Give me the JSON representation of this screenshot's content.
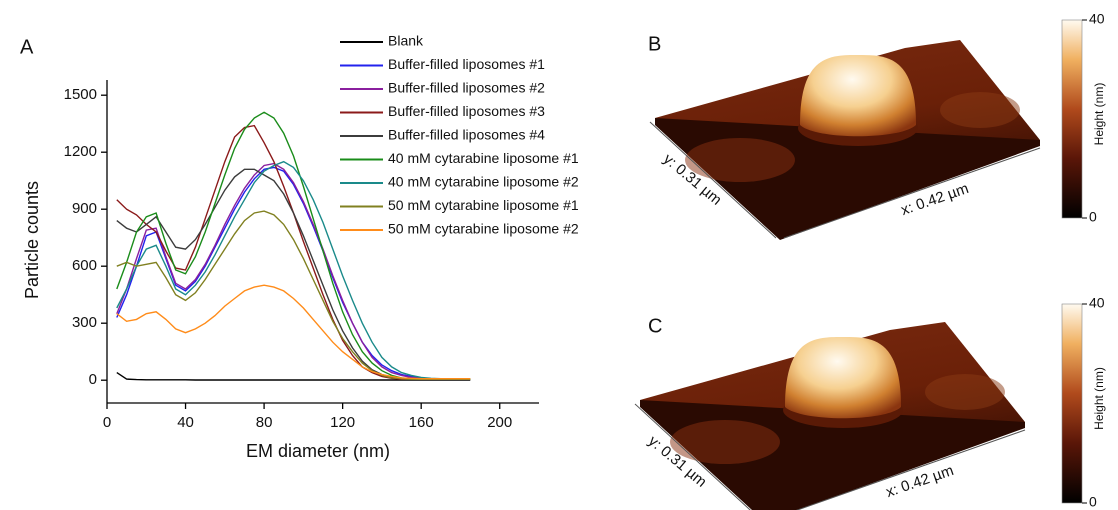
{
  "chart_data": [
    {
      "type": "line",
      "label": "A",
      "xlabel": "EM diameter (nm)",
      "ylabel": "Particle counts",
      "x": [
        5,
        10,
        15,
        20,
        25,
        30,
        35,
        40,
        45,
        50,
        55,
        60,
        65,
        70,
        75,
        80,
        85,
        90,
        95,
        100,
        105,
        110,
        115,
        120,
        125,
        130,
        135,
        140,
        145,
        150,
        155,
        160,
        165,
        170,
        175,
        180,
        185
      ],
      "xlim": [
        0,
        220
      ],
      "xticks": [
        0,
        40,
        80,
        120,
        160,
        200
      ],
      "ylim": [
        -120,
        1580
      ],
      "yticks": [
        0,
        300,
        600,
        900,
        1200,
        1500
      ],
      "series": [
        {
          "name": "Blank",
          "color": "#000000",
          "values": [
            40,
            6,
            3,
            2,
            2,
            2,
            2,
            2,
            1,
            1,
            1,
            1,
            1,
            1,
            1,
            1,
            1,
            1,
            1,
            1,
            1,
            1,
            1,
            1,
            1,
            1,
            1,
            1,
            1,
            1,
            1,
            1,
            1,
            1,
            1,
            1,
            1
          ]
        },
        {
          "name": "Buffer-filled liposomes #1",
          "color": "#2222ee",
          "values": [
            330,
            450,
            600,
            760,
            780,
            640,
            500,
            470,
            520,
            600,
            700,
            800,
            900,
            990,
            1060,
            1110,
            1120,
            1100,
            1030,
            930,
            810,
            680,
            540,
            410,
            300,
            200,
            130,
            80,
            50,
            30,
            20,
            12,
            8,
            5,
            5,
            5,
            5
          ]
        },
        {
          "name": "Buffer-filled liposomes #2",
          "color": "#8a1f9e",
          "values": [
            350,
            480,
            640,
            790,
            800,
            650,
            510,
            480,
            530,
            610,
            710,
            820,
            920,
            1010,
            1080,
            1130,
            1140,
            1110,
            1040,
            940,
            820,
            690,
            550,
            420,
            300,
            200,
            120,
            70,
            40,
            25,
            15,
            10,
            8,
            5,
            5,
            5,
            5
          ]
        },
        {
          "name": "Buffer-filled liposomes #3",
          "color": "#8b1a1a",
          "values": [
            950,
            900,
            870,
            820,
            780,
            680,
            590,
            580,
            700,
            850,
            1000,
            1150,
            1280,
            1330,
            1340,
            1250,
            1150,
            1020,
            880,
            730,
            590,
            450,
            320,
            210,
            130,
            70,
            40,
            20,
            10,
            5,
            5,
            5,
            5,
            5,
            5,
            5,
            5
          ]
        },
        {
          "name": "Buffer-filled liposomes #4",
          "color": "#3c3c3c",
          "values": [
            840,
            800,
            780,
            820,
            860,
            780,
            700,
            690,
            740,
            820,
            910,
            1000,
            1070,
            1110,
            1110,
            1080,
            1050,
            980,
            880,
            760,
            630,
            500,
            370,
            260,
            170,
            100,
            55,
            30,
            15,
            8,
            5,
            5,
            5,
            5,
            5,
            5,
            5
          ]
        },
        {
          "name": "40 mM cytarabine liposome #1",
          "color": "#1a8c1a",
          "values": [
            480,
            620,
            780,
            860,
            880,
            720,
            580,
            560,
            650,
            780,
            930,
            1080,
            1220,
            1320,
            1380,
            1410,
            1380,
            1300,
            1180,
            1020,
            850,
            680,
            510,
            360,
            240,
            150,
            90,
            50,
            25,
            12,
            8,
            5,
            5,
            5,
            5,
            5,
            5
          ]
        },
        {
          "name": "40 mM cytarabine liposome #2",
          "color": "#1a8a8a",
          "values": [
            380,
            480,
            600,
            690,
            710,
            600,
            480,
            450,
            500,
            570,
            660,
            760,
            860,
            950,
            1040,
            1100,
            1130,
            1150,
            1120,
            1050,
            950,
            830,
            690,
            550,
            420,
            300,
            200,
            120,
            70,
            40,
            25,
            15,
            10,
            8,
            5,
            5,
            5
          ]
        },
        {
          "name": "50 mM cytarabine liposome #1",
          "color": "#808020",
          "values": [
            600,
            620,
            600,
            610,
            620,
            540,
            450,
            420,
            460,
            530,
            610,
            690,
            770,
            840,
            880,
            890,
            870,
            820,
            740,
            640,
            530,
            420,
            310,
            220,
            150,
            90,
            50,
            25,
            12,
            8,
            5,
            5,
            5,
            5,
            5,
            5,
            5
          ]
        },
        {
          "name": "50 mM cytarabine liposome #2",
          "color": "#ff8c1a",
          "values": [
            350,
            310,
            320,
            350,
            360,
            320,
            270,
            250,
            270,
            300,
            340,
            390,
            430,
            470,
            490,
            500,
            490,
            470,
            430,
            380,
            320,
            260,
            200,
            150,
            110,
            70,
            45,
            30,
            20,
            12,
            10,
            8,
            8,
            8,
            8,
            8,
            8
          ]
        }
      ]
    },
    {
      "type": "surface",
      "label": "B",
      "x_label": "x: 0.42 µm",
      "y_label": "y: 0.31 µm",
      "colorbar_label": "Height (nm)",
      "clim": [
        0,
        40
      ],
      "cticks": [
        0,
        40
      ]
    },
    {
      "type": "surface",
      "label": "C",
      "x_label": "x: 0.42 µm",
      "y_label": "y: 0.31 µm",
      "colorbar_label": "Height (nm)",
      "clim": [
        0,
        40
      ],
      "cticks": [
        0,
        40
      ]
    }
  ]
}
